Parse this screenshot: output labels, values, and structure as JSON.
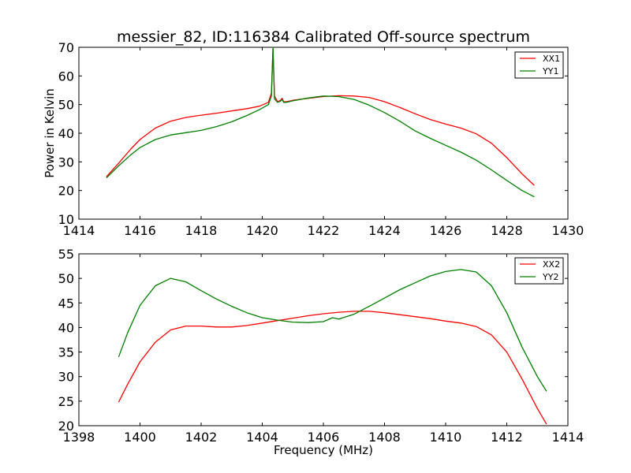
{
  "chart_data": [
    {
      "type": "line",
      "title": "messier_82, ID:116384 Calibrated Off-source spectrum",
      "xlabel": "",
      "ylabel": "Power in Kelvin",
      "xlim": [
        1414,
        1430
      ],
      "ylim": [
        10,
        70
      ],
      "xticks": [
        1414,
        1416,
        1418,
        1420,
        1422,
        1424,
        1426,
        1428,
        1430
      ],
      "yticks": [
        10,
        20,
        30,
        40,
        50,
        60,
        70
      ],
      "legend_position": "top-right",
      "grid": false,
      "series": [
        {
          "name": "XX1",
          "color": "#ff0000",
          "x": [
            1414.9,
            1415.3,
            1415.7,
            1416.0,
            1416.5,
            1417.0,
            1417.5,
            1418.0,
            1418.5,
            1419.0,
            1419.5,
            1419.9,
            1420.2,
            1420.3,
            1420.35,
            1420.4,
            1420.5,
            1420.6,
            1420.65,
            1420.7,
            1420.8,
            1421.0,
            1421.5,
            1422.0,
            1422.5,
            1423.0,
            1423.5,
            1424.0,
            1424.5,
            1425.0,
            1425.5,
            1426.0,
            1426.5,
            1427.0,
            1427.5,
            1428.0,
            1428.5,
            1428.9
          ],
          "values": [
            24.8,
            29.5,
            34.5,
            37.8,
            41.8,
            44.2,
            45.5,
            46.3,
            47.0,
            47.8,
            48.6,
            49.4,
            50.8,
            54.0,
            69.5,
            53.0,
            51.0,
            51.5,
            52.2,
            51.0,
            51.0,
            51.5,
            52.2,
            52.8,
            53.1,
            53.0,
            52.5,
            51.0,
            49.0,
            46.8,
            44.8,
            43.2,
            41.8,
            39.8,
            36.5,
            31.5,
            25.8,
            21.8
          ]
        },
        {
          "name": "YY1",
          "color": "#008000",
          "x": [
            1414.9,
            1415.3,
            1415.7,
            1416.0,
            1416.5,
            1417.0,
            1417.5,
            1418.0,
            1418.5,
            1419.0,
            1419.5,
            1419.9,
            1420.2,
            1420.3,
            1420.35,
            1420.4,
            1420.5,
            1420.6,
            1420.65,
            1420.7,
            1420.8,
            1421.0,
            1421.5,
            1422.0,
            1422.5,
            1423.0,
            1423.5,
            1424.0,
            1424.5,
            1425.0,
            1425.5,
            1426.0,
            1426.5,
            1427.0,
            1427.5,
            1428.0,
            1428.5,
            1428.9
          ],
          "values": [
            24.4,
            28.6,
            32.5,
            35.0,
            37.8,
            39.4,
            40.2,
            41.0,
            42.3,
            44.0,
            46.2,
            48.2,
            50.0,
            53.0,
            70.0,
            52.0,
            50.8,
            51.2,
            51.8,
            50.8,
            50.8,
            51.3,
            52.3,
            53.0,
            52.8,
            51.8,
            49.8,
            47.2,
            44.2,
            40.8,
            38.2,
            35.8,
            33.4,
            30.6,
            27.2,
            23.5,
            20.0,
            17.8
          ]
        }
      ]
    },
    {
      "type": "line",
      "title": "",
      "xlabel": "Frequency (MHz)",
      "ylabel": "",
      "xlim": [
        1398,
        1414
      ],
      "ylim": [
        20,
        55
      ],
      "xticks": [
        1398,
        1400,
        1402,
        1404,
        1406,
        1408,
        1410,
        1412,
        1414
      ],
      "yticks": [
        20,
        25,
        30,
        35,
        40,
        45,
        50,
        55
      ],
      "legend_position": "top-right",
      "grid": false,
      "series": [
        {
          "name": "XX2",
          "color": "#ff0000",
          "x": [
            1399.3,
            1399.6,
            1400.0,
            1400.5,
            1401.0,
            1401.5,
            1402.0,
            1402.5,
            1403.0,
            1403.5,
            1404.0,
            1404.5,
            1405.0,
            1405.5,
            1406.0,
            1406.5,
            1407.0,
            1407.5,
            1408.0,
            1408.5,
            1409.0,
            1409.5,
            1410.0,
            1410.5,
            1411.0,
            1411.5,
            1412.0,
            1412.5,
            1413.0,
            1413.3
          ],
          "values": [
            24.8,
            28.5,
            33.0,
            37.0,
            39.5,
            40.3,
            40.3,
            40.1,
            40.1,
            40.4,
            40.9,
            41.4,
            41.9,
            42.4,
            42.8,
            43.1,
            43.3,
            43.3,
            43.0,
            42.6,
            42.2,
            41.8,
            41.3,
            40.9,
            40.2,
            38.5,
            35.0,
            29.5,
            23.5,
            20.3
          ]
        },
        {
          "name": "YY2",
          "color": "#008000",
          "x": [
            1399.3,
            1399.6,
            1400.0,
            1400.5,
            1401.0,
            1401.5,
            1402.0,
            1402.5,
            1403.0,
            1403.5,
            1404.0,
            1404.5,
            1405.0,
            1405.5,
            1406.0,
            1406.3,
            1406.5,
            1407.0,
            1407.5,
            1408.0,
            1408.5,
            1409.0,
            1409.5,
            1410.0,
            1410.5,
            1411.0,
            1411.5,
            1412.0,
            1412.5,
            1413.0,
            1413.3
          ],
          "values": [
            34.0,
            39.0,
            44.5,
            48.5,
            50.0,
            49.3,
            47.5,
            45.8,
            44.3,
            43.0,
            42.0,
            41.5,
            41.1,
            41.0,
            41.2,
            42.0,
            41.7,
            42.7,
            44.3,
            46.0,
            47.7,
            49.1,
            50.5,
            51.4,
            51.8,
            51.3,
            48.5,
            43.0,
            36.0,
            30.0,
            27.0
          ]
        }
      ]
    }
  ]
}
